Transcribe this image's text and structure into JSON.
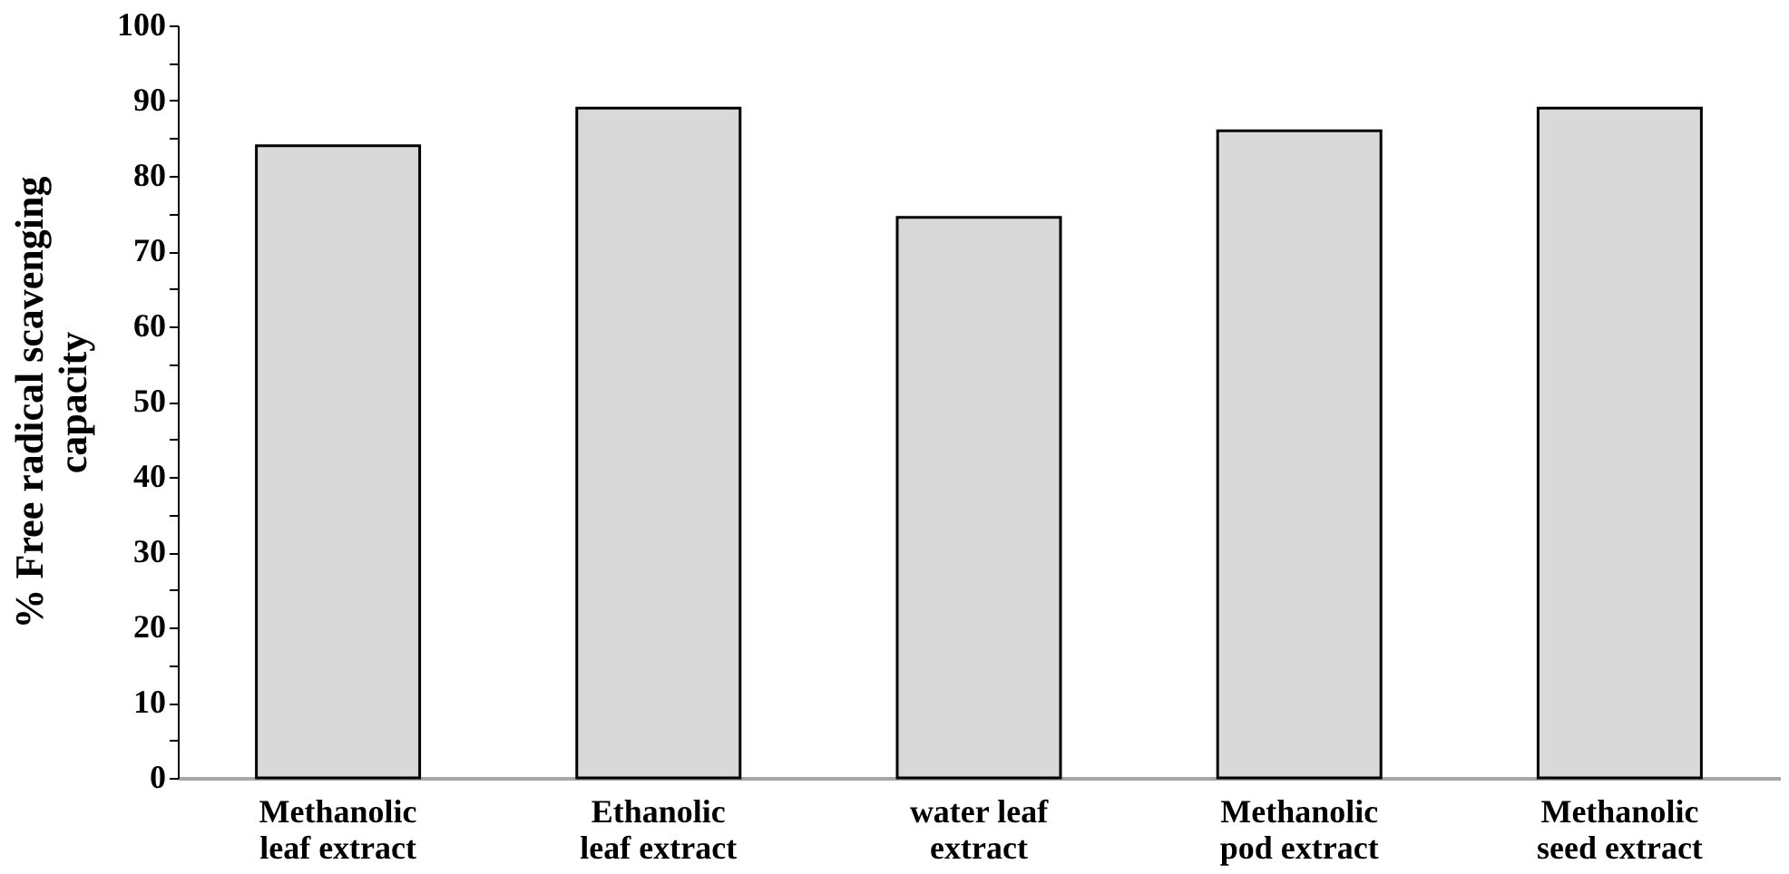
{
  "chart_data": {
    "type": "bar",
    "ylabel": "% Free radical scavenging\ncapacity",
    "categories": [
      "Methanolic\nleaf extract",
      "Ethanolic\nleaf extract",
      "water leaf\nextract",
      "Methanolic\npod extract",
      "Methanolic\nseed extract"
    ],
    "values": [
      84,
      89,
      74.5,
      86,
      89
    ],
    "color": "#d9d9d9",
    "ylim": [
      0,
      100
    ],
    "yticks": [
      0,
      {
        "value": 5,
        "label": null
      },
      10,
      {
        "value": 15,
        "label": null
      },
      20,
      {
        "value": 25,
        "label": null
      },
      30,
      {
        "value": 35,
        "label": null
      },
      40,
      {
        "value": 45,
        "label": null
      },
      50,
      {
        "value": 55,
        "label": null
      },
      60,
      {
        "value": 65,
        "label": null
      },
      70,
      {
        "value": 75,
        "label": null
      },
      80,
      {
        "value": 85,
        "label": null
      },
      90,
      {
        "value": 95,
        "label": null
      },
      100
    ],
    "grid": false
  }
}
